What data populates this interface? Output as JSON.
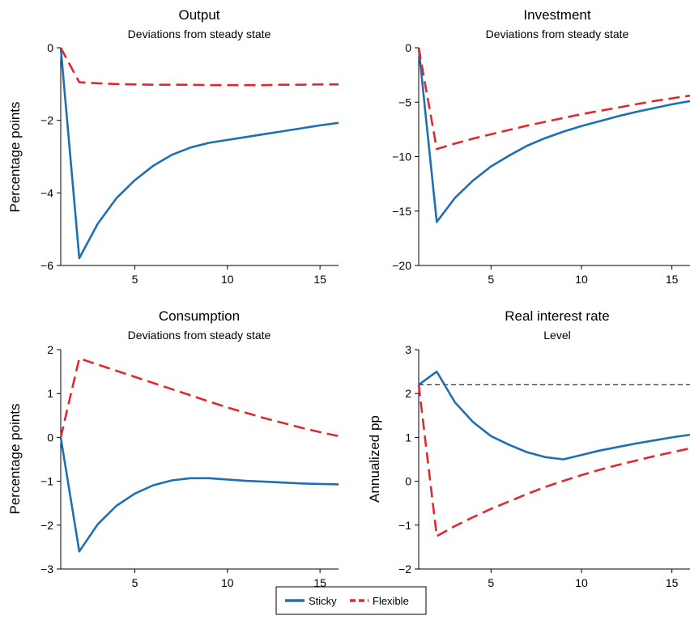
{
  "colors": {
    "sticky": "#1f6fb5",
    "flexible": "#e0282f",
    "reference": "#333333"
  },
  "legend": {
    "sticky": "Sticky",
    "flexible": "Flexible"
  },
  "chart_data": [
    {
      "type": "line",
      "title": "Output",
      "subtitle": "Deviations from steady state",
      "ylabel": "Percentage points",
      "xlabel": "",
      "xlim": [
        1,
        16
      ],
      "ylim": [
        -6,
        0
      ],
      "xticks": [
        5,
        10,
        15
      ],
      "yticks": [
        0,
        -2,
        -4,
        -6
      ],
      "ytick_labels": [
        "0",
        "−2",
        "−4",
        "−6"
      ],
      "x": [
        1,
        2,
        3,
        4,
        5,
        6,
        7,
        8,
        9,
        10,
        11,
        12,
        13,
        14,
        15,
        16
      ],
      "series": [
        {
          "name": "Sticky",
          "values": [
            0,
            -5.8,
            -4.85,
            -4.15,
            -3.65,
            -3.25,
            -2.95,
            -2.75,
            -2.62,
            -2.54,
            -2.46,
            -2.38,
            -2.3,
            -2.22,
            -2.14,
            -2.07
          ]
        },
        {
          "name": "Flexible",
          "values": [
            0,
            -0.95,
            -0.98,
            -1.0,
            -1.01,
            -1.02,
            -1.02,
            -1.02,
            -1.03,
            -1.03,
            -1.03,
            -1.03,
            -1.02,
            -1.02,
            -1.01,
            -1.01
          ]
        }
      ],
      "grid": false
    },
    {
      "type": "line",
      "title": "Investment",
      "subtitle": "Deviations from steady state",
      "ylabel": "",
      "xlabel": "",
      "xlim": [
        1,
        16
      ],
      "ylim": [
        -20,
        0
      ],
      "xticks": [
        5,
        10,
        15
      ],
      "yticks": [
        0,
        -5,
        -10,
        -15,
        -20
      ],
      "ytick_labels": [
        "0",
        "−5",
        "−10",
        "−15",
        "−20"
      ],
      "x": [
        1,
        2,
        3,
        4,
        5,
        6,
        7,
        8,
        9,
        10,
        11,
        12,
        13,
        14,
        15,
        16
      ],
      "series": [
        {
          "name": "Sticky",
          "values": [
            0,
            -16,
            -13.8,
            -12.2,
            -10.9,
            -9.9,
            -9.0,
            -8.3,
            -7.7,
            -7.2,
            -6.75,
            -6.3,
            -5.9,
            -5.55,
            -5.2,
            -4.9
          ]
        },
        {
          "name": "Flexible",
          "values": [
            0,
            -9.3,
            -8.8,
            -8.35,
            -7.95,
            -7.55,
            -7.15,
            -6.8,
            -6.45,
            -6.1,
            -5.8,
            -5.5,
            -5.2,
            -4.9,
            -4.65,
            -4.4
          ]
        }
      ],
      "grid": false
    },
    {
      "type": "line",
      "title": "Consumption",
      "subtitle": "Deviations from steady state",
      "ylabel": "Percentage points",
      "xlabel": "",
      "xlim": [
        1,
        16
      ],
      "ylim": [
        -3,
        2
      ],
      "xticks": [
        5,
        10,
        15
      ],
      "yticks": [
        2,
        1,
        0,
        -1,
        -2,
        -3
      ],
      "ytick_labels": [
        "2",
        "1",
        "0",
        "−1",
        "−2",
        "−3"
      ],
      "x": [
        1,
        2,
        3,
        4,
        5,
        6,
        7,
        8,
        9,
        10,
        11,
        12,
        13,
        14,
        15,
        16
      ],
      "series": [
        {
          "name": "Sticky",
          "values": [
            0,
            -2.6,
            -1.98,
            -1.56,
            -1.28,
            -1.09,
            -0.98,
            -0.93,
            -0.93,
            -0.96,
            -0.99,
            -1.01,
            -1.03,
            -1.05,
            -1.06,
            -1.07
          ]
        },
        {
          "name": "Flexible",
          "values": [
            0,
            1.8,
            1.66,
            1.52,
            1.38,
            1.24,
            1.1,
            0.96,
            0.82,
            0.68,
            0.56,
            0.44,
            0.33,
            0.22,
            0.12,
            0.03
          ]
        }
      ],
      "grid": false
    },
    {
      "type": "line",
      "title": "Real interest rate",
      "subtitle": "Level",
      "ylabel": "Annualized pp",
      "xlabel": "",
      "xlim": [
        1,
        16
      ],
      "ylim": [
        -2,
        3
      ],
      "xticks": [
        5,
        10,
        15
      ],
      "yticks": [
        3,
        2,
        1,
        0,
        -1,
        -2
      ],
      "ytick_labels": [
        "3",
        "2",
        "1",
        "0",
        "−1",
        "−2"
      ],
      "x": [
        1,
        2,
        3,
        4,
        5,
        6,
        7,
        8,
        9,
        10,
        11,
        12,
        13,
        14,
        15,
        16
      ],
      "series": [
        {
          "name": "Sticky",
          "values": [
            2.2,
            2.5,
            1.8,
            1.35,
            1.03,
            0.83,
            0.66,
            0.55,
            0.5,
            0.6,
            0.7,
            0.78,
            0.86,
            0.93,
            1.0,
            1.06
          ]
        },
        {
          "name": "Flexible",
          "values": [
            2.2,
            -1.25,
            -1.02,
            -0.82,
            -0.63,
            -0.46,
            -0.29,
            -0.13,
            0.01,
            0.14,
            0.26,
            0.37,
            0.47,
            0.57,
            0.66,
            0.75
          ]
        }
      ],
      "reference_line": 2.2,
      "grid": false
    }
  ]
}
